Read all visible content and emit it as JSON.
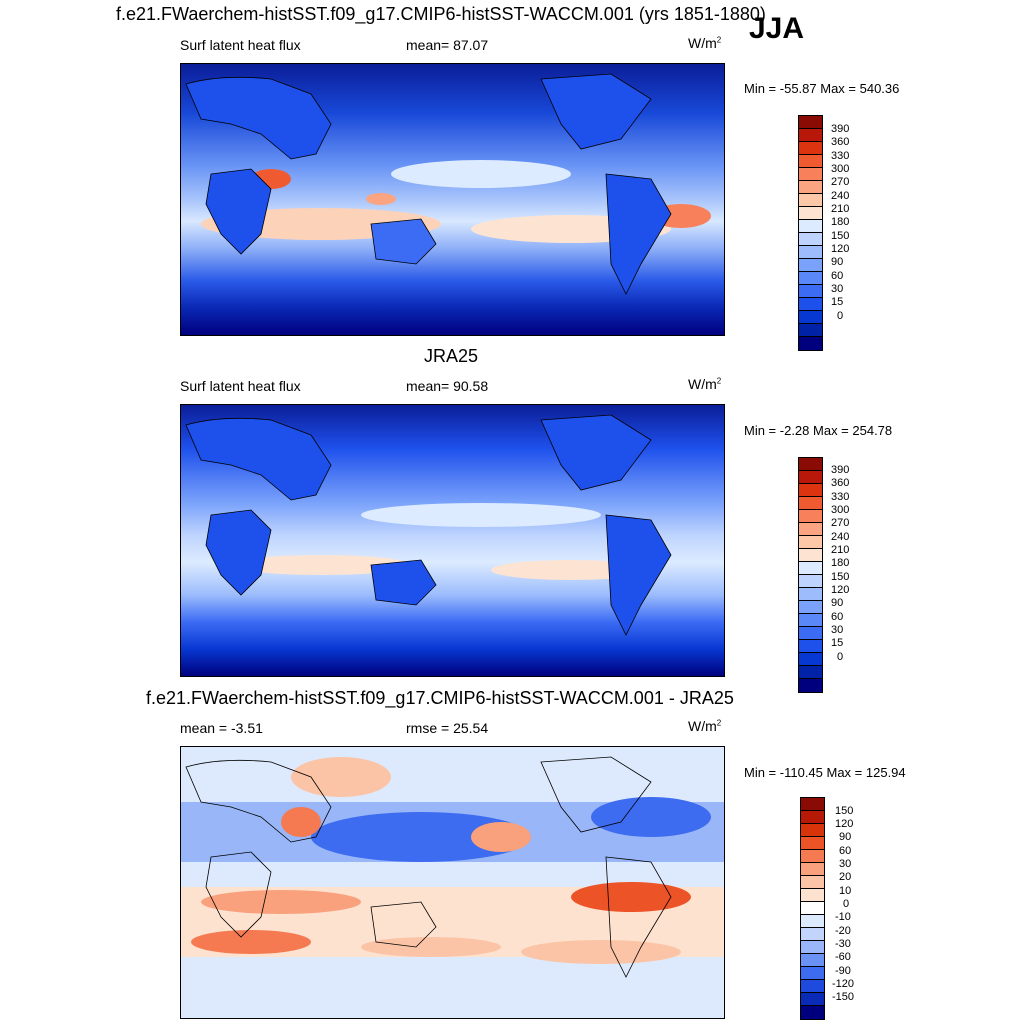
{
  "season": "JJA",
  "colors": {
    "ramp": [
      "#00007e",
      "#0022a6",
      "#0838d2",
      "#1e50ec",
      "#3c6cf4",
      "#5a88f8",
      "#7aa2fb",
      "#9cbcfc",
      "#bed4fe",
      "#dcebff",
      "#fde4d2",
      "#fcc8a8",
      "#fba482",
      "#f8805a",
      "#f05a30",
      "#dc3410",
      "#b8180a",
      "#8a0a04"
    ],
    "diff_ramp": [
      "#00007e",
      "#0a2ab8",
      "#1e4ade",
      "#3e6cf0",
      "#6a92f4",
      "#98b6f8",
      "#c2d4fb",
      "#ddeafd",
      "#ffffff",
      "#fde2d0",
      "#fbc4a6",
      "#f9a07c",
      "#f57a52",
      "#ec5428",
      "#d8340c",
      "#b61a06",
      "#8a0a04"
    ]
  },
  "panels": [
    {
      "title": "f.e21.FWaerchem-histSST.f09_g17.CMIP6-histSST-WACCM.001 (yrs 1851-1880)",
      "variable": "Surf latent heat flux",
      "stat": "mean=  87.07",
      "units": "W/m",
      "units_exp": "2",
      "minmax": "Min = -55.87 Max = 540.36",
      "levels": [
        "390",
        "360",
        "330",
        "300",
        "270",
        "240",
        "210",
        "180",
        "150",
        "120",
        "90",
        "60",
        "30",
        "15",
        "0"
      ]
    },
    {
      "title": "JRA25",
      "variable": "Surf latent heat flux",
      "stat": "mean=  90.58",
      "units": "W/m",
      "units_exp": "2",
      "minmax": "Min =  -2.28 Max = 254.78",
      "levels": [
        "390",
        "360",
        "330",
        "300",
        "270",
        "240",
        "210",
        "180",
        "150",
        "120",
        "90",
        "60",
        "30",
        "15",
        "0"
      ]
    },
    {
      "title": "f.e21.FWaerchem-histSST.f09_g17.CMIP6-histSST-WACCM.001 - JRA25",
      "variable": "mean =  -3.51",
      "stat": "rmse =  25.54",
      "units": "W/m",
      "units_exp": "2",
      "minmax": "Min = -110.45 Max = 125.94",
      "levels": [
        "150",
        "120",
        "90",
        "60",
        "30",
        "20",
        "10",
        "0",
        "-10",
        "-20",
        "-30",
        "-60",
        "-90",
        "-120",
        "-150"
      ]
    }
  ]
}
